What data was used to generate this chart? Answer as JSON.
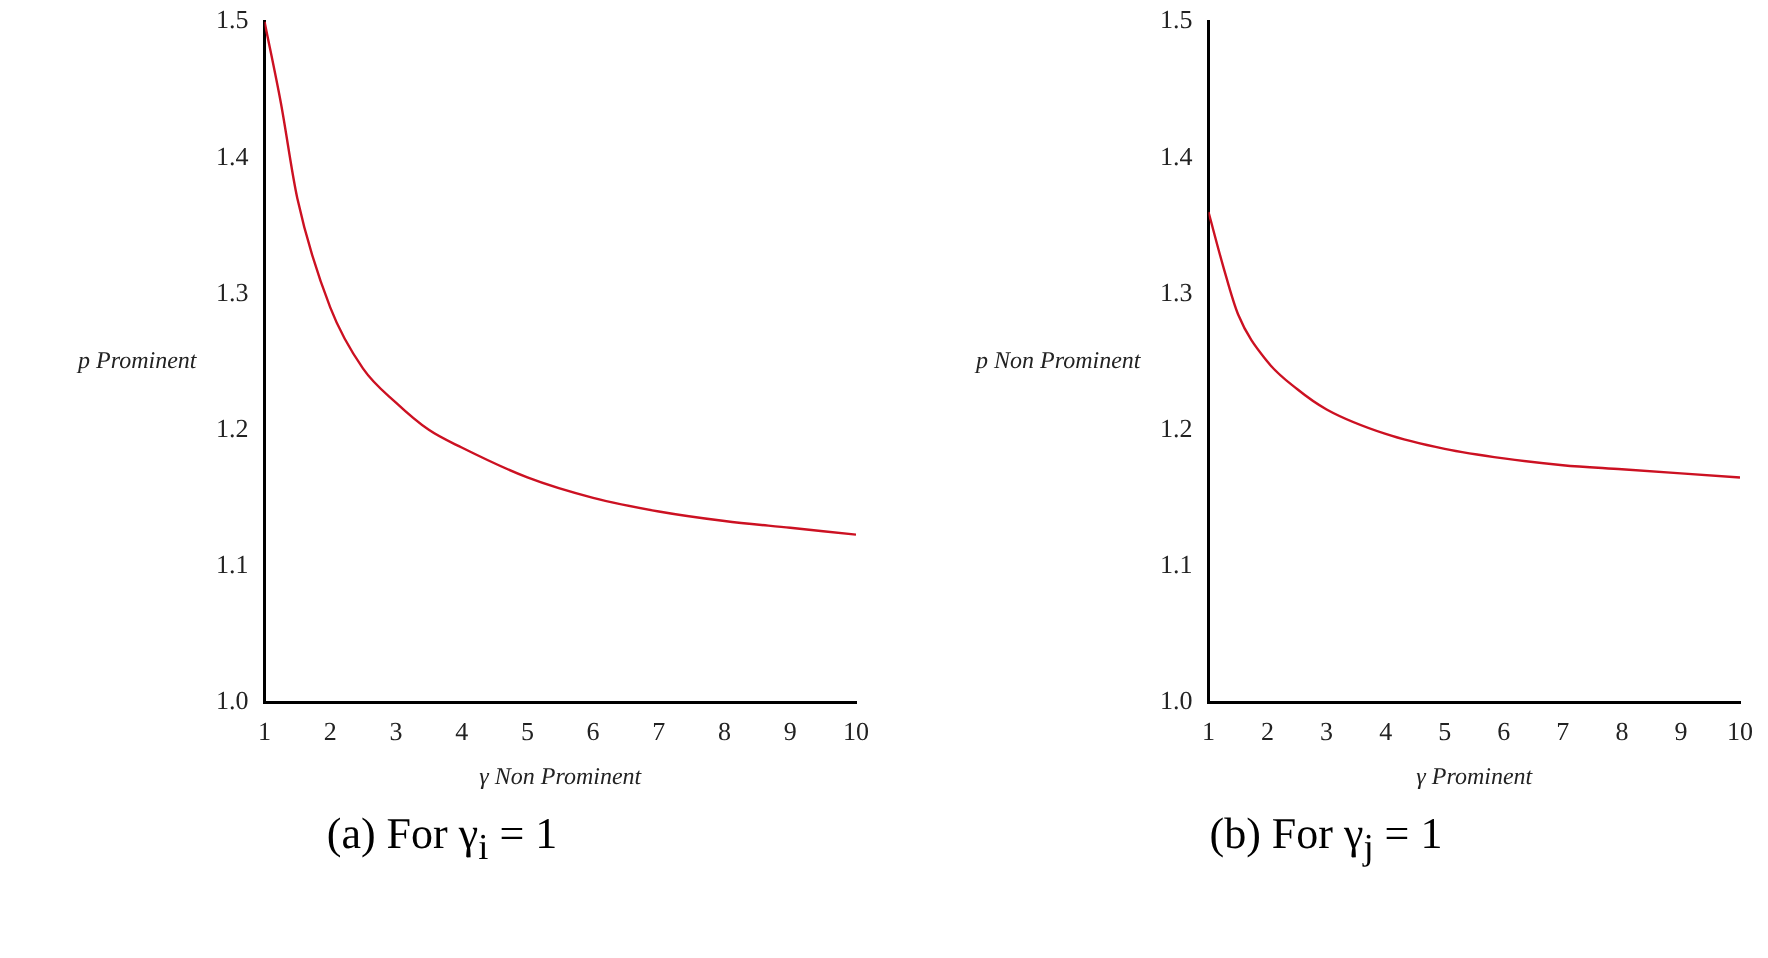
{
  "chart_data": [
    {
      "type": "line",
      "xlabel": "γ Non Prominent",
      "ylabel": "p Prominent",
      "annotations": [
        "(a) For γ$_{i}$ = 1"
      ],
      "x": [
        1,
        1.25,
        1.5,
        2,
        2.5,
        3,
        3.5,
        4,
        5,
        6,
        7,
        8,
        9,
        10
      ],
      "series": [
        {
          "color": "#cc1122",
          "values": [
            1.5,
            1.44,
            1.37,
            1.29,
            1.245,
            1.22,
            1.2,
            1.187,
            1.165,
            1.15,
            1.14,
            1.133,
            1.128,
            1.123
          ]
        }
      ],
      "xlim": [
        1,
        10
      ],
      "xticks": [
        1,
        2,
        3,
        4,
        5,
        6,
        7,
        8,
        9,
        10
      ],
      "ylim": [
        1,
        1.5
      ],
      "yticks": [
        {
          "value": 1,
          "label": "1.0"
        },
        1.1,
        1.2,
        1.3,
        1.4,
        1.5
      ],
      "grid": false,
      "legend": false,
      "marker": "none",
      "line_style": "solid"
    },
    {
      "type": "line",
      "xlabel": "γ Prominent",
      "ylabel": "p Non Prominent",
      "annotations": [
        "(b) For γ$_{j}$ = 1"
      ],
      "x": [
        1,
        1.25,
        1.5,
        2,
        2.5,
        3,
        4,
        5,
        6,
        7,
        8,
        9,
        10
      ],
      "series": [
        {
          "color": "#cc1122",
          "values": [
            1.36,
            1.32,
            1.285,
            1.25,
            1.23,
            1.215,
            1.197,
            1.186,
            1.179,
            1.174,
            1.171,
            1.168,
            1.165
          ]
        }
      ],
      "xlim": [
        1,
        10
      ],
      "xticks": [
        1,
        2,
        3,
        4,
        5,
        6,
        7,
        8,
        9,
        10
      ],
      "ylim": [
        1,
        1.5
      ],
      "yticks": [
        {
          "value": 1,
          "label": "1.0"
        },
        1.1,
        1.2,
        1.3,
        1.4,
        1.5
      ],
      "grid": false,
      "legend": false,
      "marker": "none",
      "line_style": "solid"
    }
  ]
}
